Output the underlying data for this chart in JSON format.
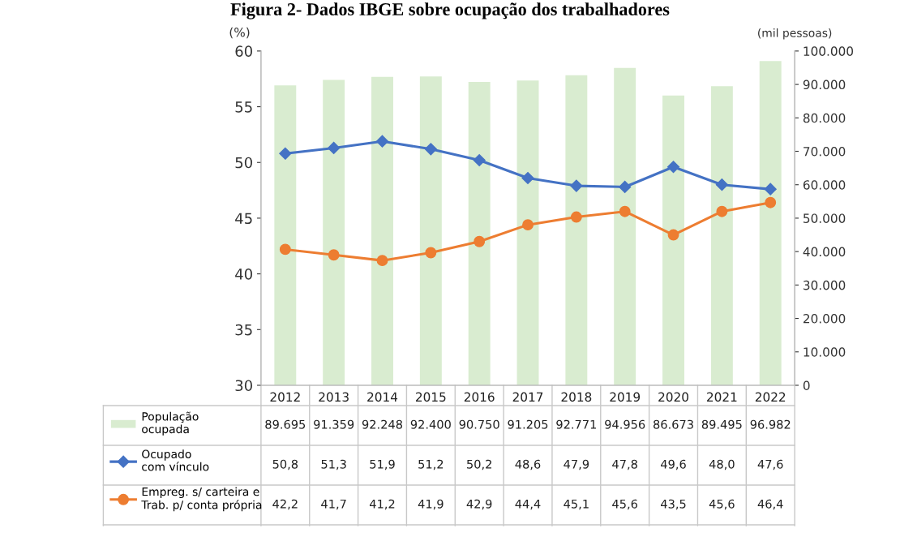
{
  "chart_data": {
    "type": "bar",
    "title": "Figura 2- Dados IBGE sobre ocupação dos trabalhadores",
    "ylabel": "(%)",
    "y2label": "(mil pessoas)",
    "categories": [
      "2012",
      "2013",
      "2014",
      "2015",
      "2016",
      "2017",
      "2018",
      "2019",
      "2020",
      "2021",
      "2022"
    ],
    "series": [
      {
        "name": "População\nocupada",
        "axis": "y2",
        "color": "#d9ecd0",
        "values": [
          89695,
          91359,
          92248,
          92400,
          90750,
          91205,
          92771,
          94956,
          86673,
          89495,
          96982
        ],
        "value_labels": [
          "89.695",
          "91.359",
          "92.248",
          "92.400",
          "90.750",
          "91.205",
          "92.771",
          "94.956",
          "86.673",
          "89.495",
          "96.982"
        ]
      },
      {
        "name": "Ocupado\ncom vínculo",
        "type": "line",
        "color": "#4472c4",
        "marker": "diamond",
        "values": [
          50.8,
          51.3,
          51.9,
          51.2,
          50.2,
          48.6,
          47.9,
          47.8,
          49.6,
          48.0,
          47.6
        ],
        "value_labels": [
          "50,8",
          "51,3",
          "51,9",
          "51,2",
          "50,2",
          "48,6",
          "47,9",
          "47,8",
          "49,6",
          "48,0",
          "47,6"
        ]
      },
      {
        "name": "Empreg. s/ carteira e\nTrab. p/ conta própria",
        "type": "line",
        "color": "#ed7d31",
        "marker": "circle",
        "values": [
          42.2,
          41.7,
          41.2,
          41.9,
          42.9,
          44.4,
          45.1,
          45.6,
          43.5,
          45.6,
          46.4
        ],
        "value_labels": [
          "42,2",
          "41,7",
          "41,2",
          "41,9",
          "42,9",
          "44,4",
          "45,1",
          "45,6",
          "43,5",
          "45,6",
          "46,4"
        ]
      }
    ],
    "ylim": [
      30,
      60
    ],
    "yticks": [
      30,
      35,
      40,
      45,
      50,
      55,
      60
    ],
    "y2lim": [
      0,
      100000
    ],
    "y2ticks": [
      {
        "value": 0,
        "label": "0"
      },
      {
        "value": 10000,
        "label": "10.000"
      },
      {
        "value": 20000,
        "label": "20.000"
      },
      {
        "value": 30000,
        "label": "30.000"
      },
      {
        "value": 40000,
        "label": "40.000"
      },
      {
        "value": 50000,
        "label": "50.000"
      },
      {
        "value": 60000,
        "label": "60.000"
      },
      {
        "value": 70000,
        "label": "70.000"
      },
      {
        "value": 80000,
        "label": "80.000"
      },
      {
        "value": 90000,
        "label": "90.000"
      },
      {
        "value": 100000,
        "label": "100.000"
      }
    ],
    "line_style": "solid",
    "legend": "bottom left"
  }
}
